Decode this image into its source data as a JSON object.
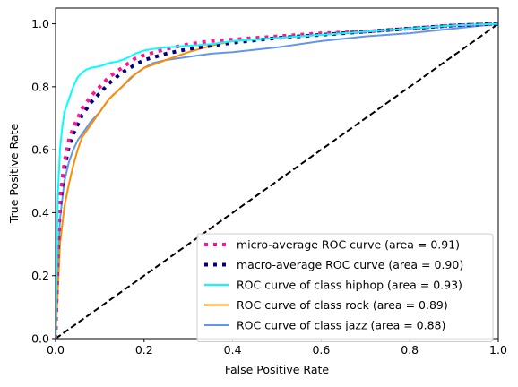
{
  "chart_data": {
    "type": "line",
    "title": "",
    "xlabel": "False Positive Rate",
    "ylabel": "True Positive Rate",
    "xlim": [
      0.0,
      1.0
    ],
    "ylim": [
      0.0,
      1.05
    ],
    "xticks": [
      0.0,
      0.2,
      0.4,
      0.6,
      0.8,
      1.0
    ],
    "yticks": [
      0.0,
      0.2,
      0.4,
      0.6,
      0.8,
      1.0
    ],
    "xtick_labels": [
      "0.0",
      "0.2",
      "0.4",
      "0.6",
      "0.8",
      "1.0"
    ],
    "ytick_labels": [
      "0.0",
      "0.2",
      "0.4",
      "0.6",
      "0.8",
      "1.0"
    ],
    "grid": false,
    "legend_position": "lower-right",
    "series": [
      {
        "name": "micro-average ROC curve (area = 0.91)",
        "color": "#ff1493",
        "style": "dotted",
        "x": [
          0,
          0.005,
          0.01,
          0.02,
          0.03,
          0.04,
          0.05,
          0.06,
          0.08,
          0.1,
          0.12,
          0.15,
          0.18,
          0.2,
          0.25,
          0.3,
          0.35,
          0.4,
          0.5,
          0.6,
          0.7,
          0.8,
          0.9,
          1.0
        ],
        "y": [
          0,
          0.3,
          0.45,
          0.56,
          0.63,
          0.67,
          0.7,
          0.73,
          0.77,
          0.8,
          0.83,
          0.86,
          0.89,
          0.9,
          0.92,
          0.935,
          0.945,
          0.95,
          0.96,
          0.97,
          0.975,
          0.985,
          0.995,
          1.0
        ]
      },
      {
        "name": "macro-average ROC curve (area = 0.90)",
        "color": "#000080",
        "style": "dotted",
        "x": [
          0,
          0.005,
          0.01,
          0.02,
          0.03,
          0.04,
          0.05,
          0.06,
          0.08,
          0.1,
          0.12,
          0.15,
          0.18,
          0.2,
          0.25,
          0.3,
          0.35,
          0.4,
          0.5,
          0.6,
          0.7,
          0.8,
          0.9,
          1.0
        ],
        "y": [
          0,
          0.27,
          0.42,
          0.54,
          0.61,
          0.65,
          0.68,
          0.71,
          0.75,
          0.78,
          0.81,
          0.845,
          0.87,
          0.885,
          0.905,
          0.92,
          0.93,
          0.94,
          0.955,
          0.965,
          0.975,
          0.985,
          0.995,
          1.0
        ]
      },
      {
        "name": "ROC curve of class hiphop (area = 0.93)",
        "color": "#00ffff",
        "style": "solid",
        "x": [
          0,
          0.005,
          0.01,
          0.015,
          0.02,
          0.03,
          0.04,
          0.05,
          0.06,
          0.07,
          0.08,
          0.1,
          0.12,
          0.14,
          0.16,
          0.18,
          0.2,
          0.22,
          0.25,
          0.3,
          0.35,
          0.4,
          0.5,
          0.6,
          0.7,
          0.8,
          0.9,
          1.0
        ],
        "y": [
          0,
          0.45,
          0.6,
          0.67,
          0.72,
          0.76,
          0.8,
          0.83,
          0.845,
          0.855,
          0.86,
          0.865,
          0.875,
          0.88,
          0.89,
          0.905,
          0.915,
          0.92,
          0.925,
          0.93,
          0.935,
          0.945,
          0.955,
          0.965,
          0.975,
          0.985,
          0.995,
          1.0
        ]
      },
      {
        "name": "ROC curve of class rock (area = 0.89)",
        "color": "#ff8c00",
        "style": "solid",
        "x": [
          0,
          0.005,
          0.01,
          0.02,
          0.03,
          0.04,
          0.05,
          0.06,
          0.08,
          0.1,
          0.12,
          0.15,
          0.17,
          0.2,
          0.22,
          0.25,
          0.3,
          0.35,
          0.4,
          0.5,
          0.6,
          0.7,
          0.8,
          0.9,
          1.0
        ],
        "y": [
          0,
          0.15,
          0.3,
          0.42,
          0.49,
          0.55,
          0.6,
          0.64,
          0.68,
          0.72,
          0.76,
          0.8,
          0.83,
          0.86,
          0.87,
          0.885,
          0.91,
          0.93,
          0.945,
          0.955,
          0.965,
          0.975,
          0.985,
          0.995,
          1.0
        ]
      },
      {
        "name": "ROC curve of class jazz (area = 0.88)",
        "color": "#6495ed",
        "style": "solid",
        "x": [
          0,
          0.005,
          0.01,
          0.02,
          0.03,
          0.04,
          0.05,
          0.06,
          0.08,
          0.1,
          0.12,
          0.15,
          0.18,
          0.2,
          0.22,
          0.25,
          0.3,
          0.35,
          0.4,
          0.5,
          0.6,
          0.7,
          0.8,
          0.9,
          1.0
        ],
        "y": [
          0,
          0.22,
          0.38,
          0.5,
          0.56,
          0.6,
          0.63,
          0.65,
          0.69,
          0.72,
          0.76,
          0.8,
          0.84,
          0.86,
          0.875,
          0.885,
          0.895,
          0.905,
          0.91,
          0.925,
          0.945,
          0.96,
          0.97,
          0.985,
          1.0
        ]
      },
      {
        "name": "",
        "color": "#000000",
        "style": "dashed",
        "x": [
          0,
          1
        ],
        "y": [
          0,
          1
        ]
      }
    ]
  }
}
